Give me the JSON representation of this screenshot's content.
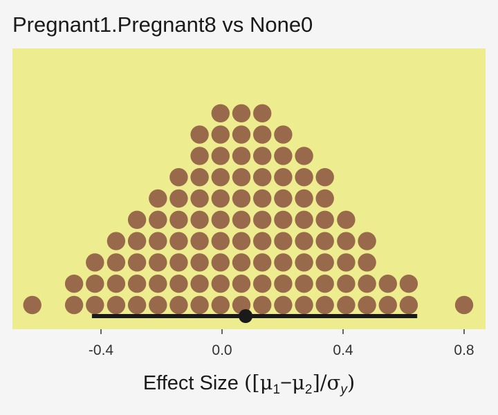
{
  "title": "Pregnant1.Pregnant8 vs None0",
  "chart_data": {
    "type": "dotplot",
    "title": "Pregnant1.Pregnant8 vs None0",
    "xlabel": "Effect Size ([μ1 − μ2]/σy)",
    "xlabel_parts": {
      "prefix": "Effect Size ",
      "open": "(",
      "mu1": "μ",
      "sub1": "1",
      "minus": "−",
      "mu2": "μ",
      "sub2": "2",
      "slash": "]/",
      "sigma": "σ",
      "suby": "y",
      "close": ")",
      "bracket_open": "["
    },
    "xlim": [
      -0.4,
      0.8
    ],
    "xtick_labels": [
      {
        "value": -0.4,
        "label": "-0.4"
      },
      {
        "value": 0.0,
        "label": "0.0"
      },
      {
        "value": 0.4,
        "label": "0.4"
      },
      {
        "value": 0.8,
        "label": "0.8"
      }
    ],
    "dot_columns": [
      {
        "x": -0.627,
        "count": 1
      },
      {
        "x": -0.489,
        "count": 2
      },
      {
        "x": -0.42,
        "count": 3
      },
      {
        "x": -0.35,
        "count": 4
      },
      {
        "x": -0.281,
        "count": 5
      },
      {
        "x": -0.212,
        "count": 6
      },
      {
        "x": -0.143,
        "count": 7
      },
      {
        "x": -0.074,
        "count": 9
      },
      {
        "x": -0.005,
        "count": 10
      },
      {
        "x": 0.064,
        "count": 10
      },
      {
        "x": 0.133,
        "count": 10
      },
      {
        "x": 0.202,
        "count": 9
      },
      {
        "x": 0.271,
        "count": 8
      },
      {
        "x": 0.34,
        "count": 7
      },
      {
        "x": 0.41,
        "count": 5
      },
      {
        "x": 0.479,
        "count": 4
      },
      {
        "x": 0.548,
        "count": 2
      },
      {
        "x": 0.617,
        "count": 2
      },
      {
        "x": 0.8,
        "count": 1
      }
    ],
    "interval": {
      "low": -0.43,
      "high": 0.645,
      "point": 0.078
    },
    "colors": {
      "panel": "#eded8f",
      "dots": "#98694b",
      "interval": "#1a1a1a",
      "background": "#f5f5f5"
    }
  }
}
